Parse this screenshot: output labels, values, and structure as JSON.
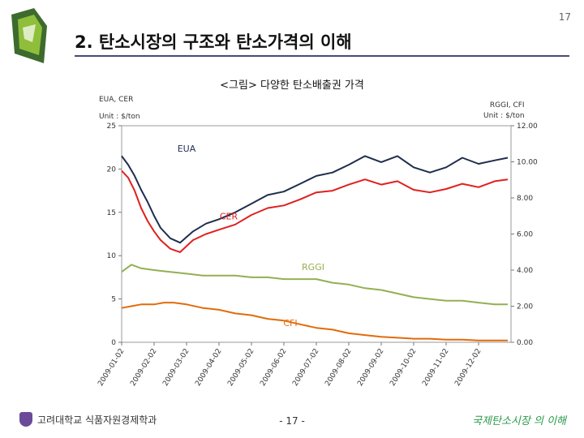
{
  "slide": {
    "number": "17",
    "title": "2. 탄소시장의 구조와 탄소가격의 이해",
    "figure_caption": "<그림> 다양한 탄소배출권 가격"
  },
  "footer": {
    "left": "고려대학교 식품자원경제학과",
    "center": "- 17 -",
    "right": "국제탄소시장 의 이해"
  },
  "colors": {
    "EUA": "#1f2d4d",
    "CER": "#e0201f",
    "RGGI": "#93b052",
    "CFI": "#e26b0a",
    "title_rule": "#4a4a7a",
    "footer_right": "#2a9a4a"
  },
  "chart_data": {
    "type": "line",
    "title": "",
    "left_axis_labels": [
      "EUA, CER",
      "Unit : $/ton"
    ],
    "right_axis_labels": [
      "RGGI, CFI",
      "Unit : $/ton"
    ],
    "y_left": {
      "range": [
        0,
        25
      ],
      "ticks": [
        "0",
        "5",
        "10",
        "15",
        "20",
        "25"
      ]
    },
    "y_right": {
      "range": [
        0,
        12
      ],
      "ticks": [
        "0.00",
        "2.00",
        "4.00",
        "6.00",
        "8.00",
        "10.00",
        "12.00"
      ]
    },
    "x_ticks": [
      "2009-01-02",
      "2009-02-02",
      "2009-03-02",
      "2009-04-02",
      "2009-05-02",
      "2009-06-02",
      "2009-07-02",
      "2009-08-02",
      "2009-09-02",
      "2009-10-02",
      "2009-11-02",
      "2009-12-02"
    ],
    "series": [
      {
        "name": "EUA",
        "axis": "left",
        "t": [
          0,
          0.2,
          0.4,
          0.6,
          0.8,
          1.0,
          1.2,
          1.5,
          1.8,
          2.2,
          2.6,
          3.0,
          3.5,
          4.0,
          4.5,
          5.0,
          5.5,
          6.0,
          6.5,
          7.0,
          7.5,
          8.0,
          8.5,
          9.0,
          9.5,
          10.0,
          10.5,
          11.0,
          11.5,
          11.9
        ],
        "values": [
          21.5,
          20.5,
          19.2,
          17.6,
          16.2,
          14.6,
          13.2,
          12.0,
          11.5,
          12.8,
          13.7,
          14.2,
          15.0,
          16.0,
          17.0,
          17.4,
          18.3,
          19.2,
          19.6,
          20.5,
          21.5,
          20.8,
          21.5,
          20.2,
          19.6,
          20.2,
          21.3,
          20.6,
          21.0,
          21.3
        ]
      },
      {
        "name": "CER",
        "axis": "left",
        "t": [
          0,
          0.2,
          0.4,
          0.6,
          0.8,
          1.0,
          1.2,
          1.5,
          1.8,
          2.2,
          2.6,
          3.0,
          3.5,
          4.0,
          4.5,
          5.0,
          5.5,
          6.0,
          6.5,
          7.0,
          7.5,
          8.0,
          8.5,
          9.0,
          9.5,
          10.0,
          10.5,
          11.0,
          11.5,
          11.9
        ],
        "values": [
          19.8,
          19.0,
          17.5,
          15.5,
          14.0,
          12.8,
          11.8,
          10.8,
          10.4,
          11.8,
          12.5,
          13.0,
          13.6,
          14.7,
          15.5,
          15.8,
          16.5,
          17.3,
          17.5,
          18.2,
          18.8,
          18.2,
          18.6,
          17.6,
          17.3,
          17.7,
          18.3,
          17.9,
          18.6,
          18.8
        ]
      },
      {
        "name": "RGGI",
        "axis": "right",
        "t": [
          0,
          0.3,
          0.6,
          1.0,
          1.5,
          2.0,
          2.5,
          3.0,
          3.5,
          4.0,
          4.5,
          5.0,
          5.5,
          6.0,
          6.5,
          7.0,
          7.5,
          8.0,
          8.5,
          9.0,
          9.5,
          10.0,
          10.5,
          11.0,
          11.5,
          11.9
        ],
        "values": [
          3.9,
          4.3,
          4.1,
          4.0,
          3.9,
          3.8,
          3.7,
          3.7,
          3.7,
          3.6,
          3.6,
          3.5,
          3.5,
          3.5,
          3.3,
          3.2,
          3.0,
          2.9,
          2.7,
          2.5,
          2.4,
          2.3,
          2.3,
          2.2,
          2.1,
          2.1
        ]
      },
      {
        "name": "CFI",
        "axis": "right",
        "t": [
          0,
          0.3,
          0.6,
          1.0,
          1.3,
          1.6,
          2.0,
          2.5,
          3.0,
          3.5,
          4.0,
          4.5,
          5.0,
          5.5,
          6.0,
          6.5,
          7.0,
          7.5,
          8.0,
          8.5,
          9.0,
          9.5,
          10.0,
          10.5,
          11.0,
          11.5,
          11.9
        ],
        "values": [
          1.9,
          2.0,
          2.1,
          2.1,
          2.2,
          2.2,
          2.1,
          1.9,
          1.8,
          1.6,
          1.5,
          1.3,
          1.2,
          1.0,
          0.8,
          0.7,
          0.5,
          0.4,
          0.3,
          0.25,
          0.2,
          0.2,
          0.15,
          0.15,
          0.1,
          0.1,
          0.1
        ]
      }
    ],
    "annotations": [
      {
        "text": "EUA",
        "series": "EUA"
      },
      {
        "text": "CER",
        "series": "CER"
      },
      {
        "text": "RGGI",
        "series": "RGGI"
      },
      {
        "text": "CFI",
        "series": "CFI"
      }
    ]
  }
}
